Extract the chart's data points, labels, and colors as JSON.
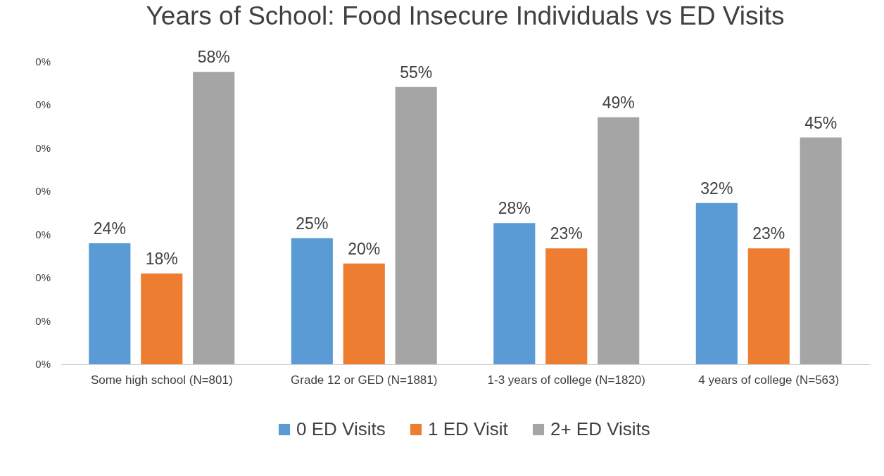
{
  "chart_data": {
    "type": "bar",
    "title": "Years of School: Food Insecure Individuals vs ED Visits",
    "categories": [
      "Some high school (N=801)",
      "Grade 12 or GED (N=1881)",
      "1-3 years of college (N=1820)",
      "4 years of college (N=563)"
    ],
    "series": [
      {
        "name": "0 ED Visits",
        "color": "#5b9bd5",
        "values": [
          24,
          25,
          28,
          32
        ],
        "value_labels": [
          "24%",
          "25%",
          "28%",
          "32%"
        ]
      },
      {
        "name": "1 ED Visit",
        "color": "#ed7d31",
        "values": [
          18,
          20,
          23,
          23
        ],
        "value_labels": [
          "18%",
          "20%",
          "23%",
          "23%"
        ]
      },
      {
        "name": "2+ ED Visits",
        "color": "#a5a5a5",
        "values": [
          58,
          55,
          49,
          45
        ],
        "value_labels": [
          "58%",
          "55%",
          "49%",
          "45%"
        ]
      }
    ],
    "annotations": [
      "0%",
      "0%",
      "0%",
      "0%",
      "0%",
      "0%",
      "0%",
      "0%"
    ],
    "data_labels": true,
    "legend": "bottom"
  }
}
